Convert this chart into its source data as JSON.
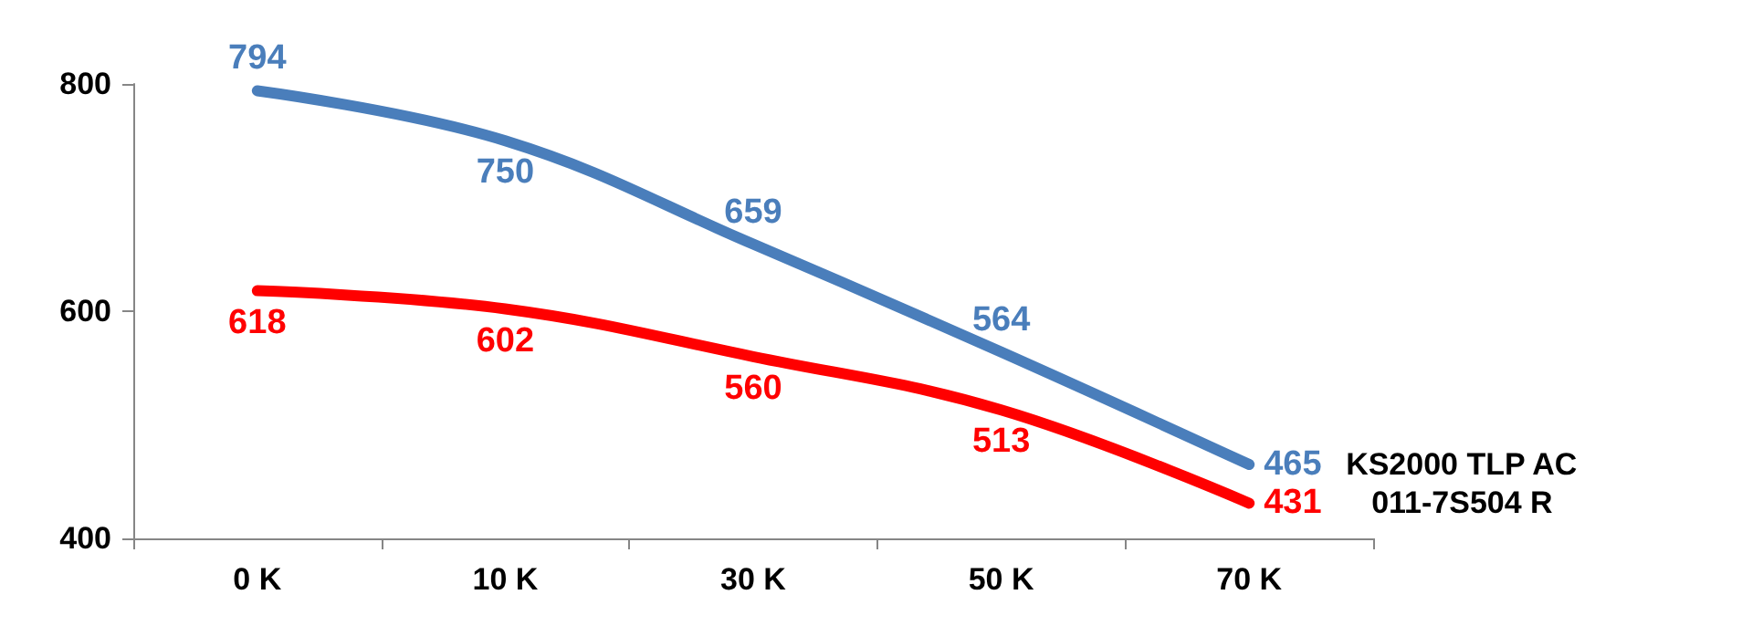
{
  "chart_data": {
    "type": "line",
    "categories": [
      "0 K",
      "10 K",
      "30 K",
      "50 K",
      "70 K"
    ],
    "series": [
      {
        "name": "KS2000 TLP AC",
        "color": "#4a7ebb",
        "values": [
          794,
          750,
          659,
          564,
          465
        ]
      },
      {
        "name": "011-7S504 R",
        "color": "#ff0000",
        "values": [
          618,
          602,
          560,
          513,
          431
        ]
      }
    ],
    "ylim": [
      400,
      800
    ],
    "yticks": [
      400,
      600,
      800
    ],
    "grid": false,
    "legend": false,
    "marker": "none",
    "line_style": "solid",
    "data_labels": true
  }
}
